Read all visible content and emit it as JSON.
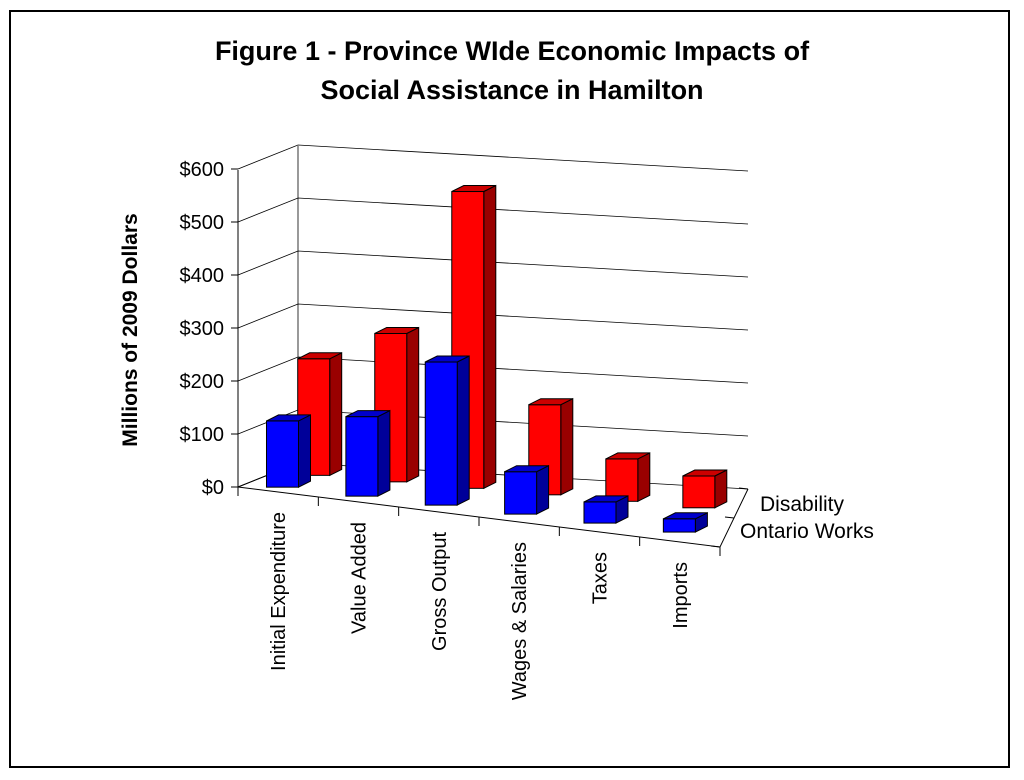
{
  "chart_data": {
    "type": "bar",
    "title_line1": "Figure 1 - Province WIde Economic Impacts of",
    "title_line2": "Social Assistance in Hamilton",
    "xlabel": "",
    "ylabel": "Millions of 2009 Dollars",
    "ylim": [
      0,
      600
    ],
    "yticks": [
      "$0",
      "$100",
      "$200",
      "$300",
      "$400",
      "$500",
      "$600"
    ],
    "categories": [
      "Initial Expenditure",
      "Value Added",
      "Gross Output",
      "Wages & Salaries",
      "Taxes",
      "Imports"
    ],
    "series": [
      {
        "name": "Disability",
        "color": "#ff0000",
        "values": [
          220,
          280,
          560,
          170,
          80,
          60
        ]
      },
      {
        "name": "Ontario Works",
        "color": "#0000ff",
        "values": [
          125,
          150,
          270,
          80,
          40,
          25
        ]
      }
    ],
    "grid": true,
    "view": "3d-perspective"
  }
}
